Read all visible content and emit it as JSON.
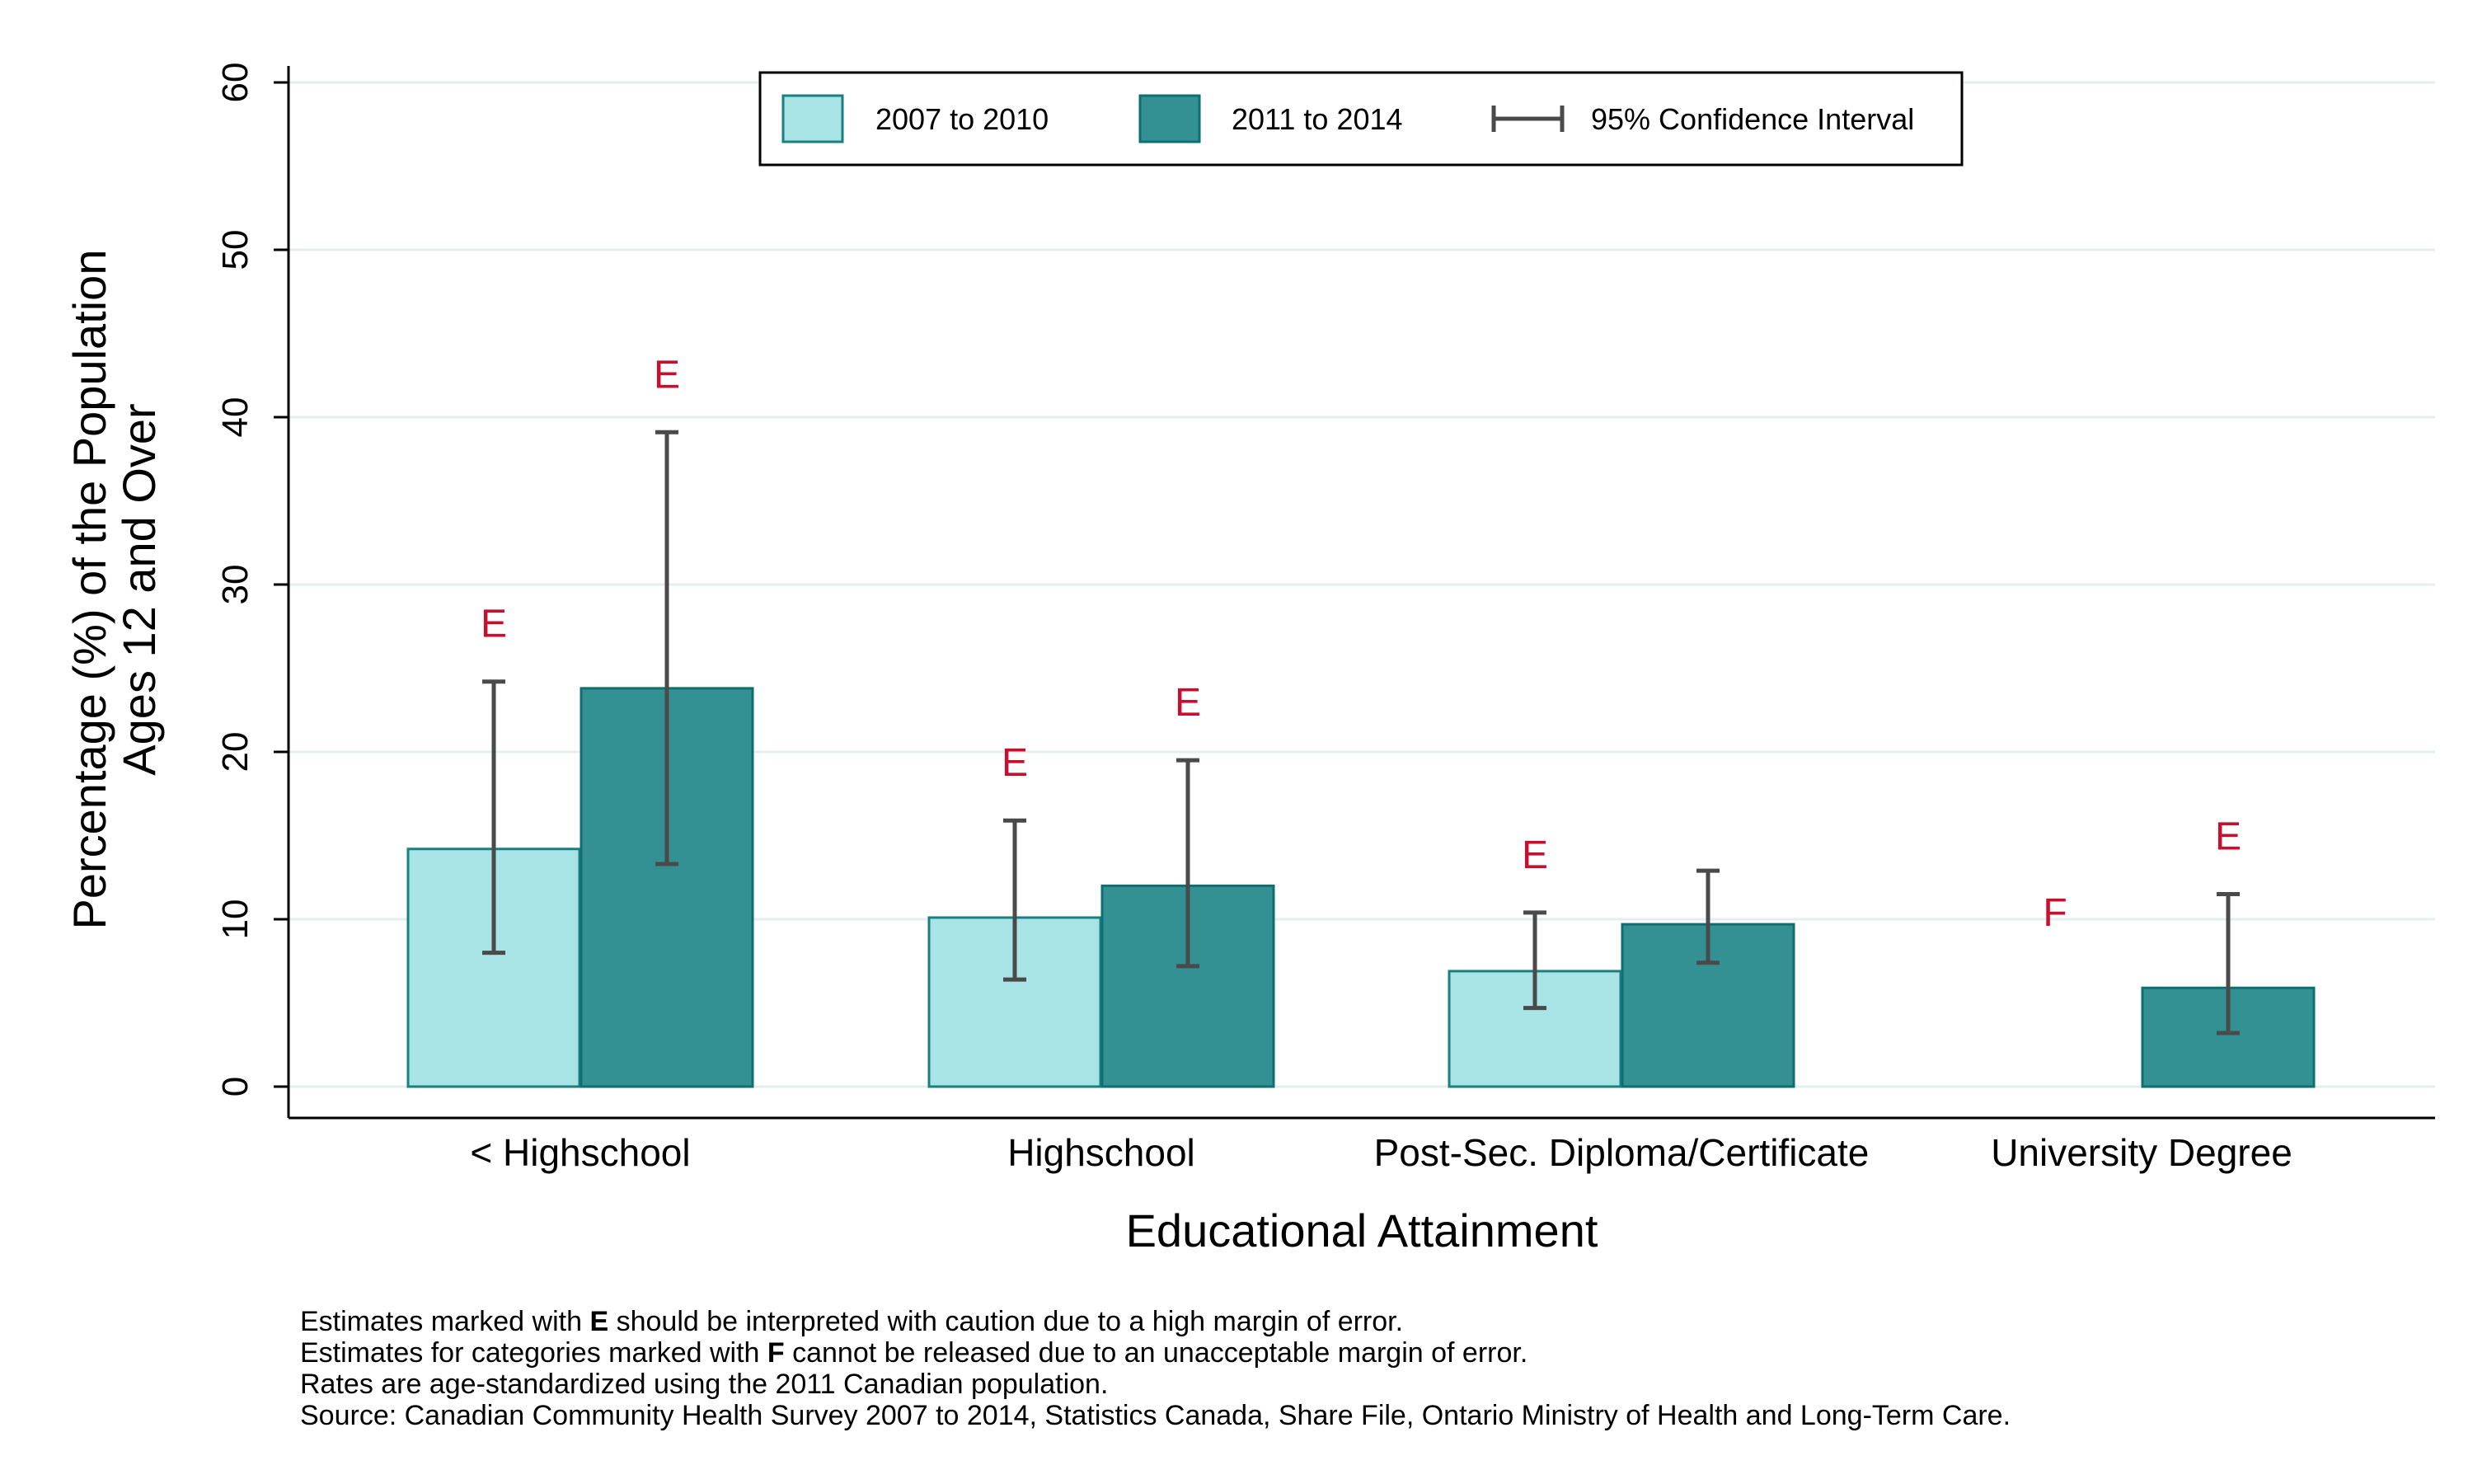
{
  "chart_data": {
    "type": "bar",
    "xlabel": "Educational Attainment",
    "ylabel_lines": [
      "Percentage (%) of the Population",
      "Ages 12 and Over"
    ],
    "ylim": [
      0,
      60
    ],
    "yticks": [
      0,
      10,
      20,
      30,
      40,
      50,
      60
    ],
    "grid": true,
    "legend_position": "top-center",
    "categories": [
      "< Highschool",
      "Highschool",
      "Post-Sec. Diploma/Certificate",
      "University Degree"
    ],
    "series": [
      {
        "name": "2007 to 2010",
        "color": "#a8e4e6",
        "stroke": "#1a7f80",
        "values": [
          14.2,
          10.1,
          6.9,
          null
        ],
        "ci_low": [
          8.0,
          6.4,
          4.7,
          null
        ],
        "ci_high": [
          24.2,
          15.9,
          10.4,
          null
        ],
        "flags": [
          "E",
          "E",
          "E",
          "F"
        ]
      },
      {
        "name": "2011 to 2014",
        "color": "#339193",
        "stroke": "#0e6f70",
        "values": [
          23.8,
          12.0,
          9.7,
          5.9
        ],
        "ci_low": [
          13.3,
          7.2,
          7.4,
          3.2
        ],
        "ci_high": [
          39.1,
          19.5,
          12.9,
          11.5
        ],
        "flags": [
          "E",
          "E",
          "",
          "E"
        ]
      }
    ],
    "ci_legend_label": "95% Confidence Interval",
    "flag_color": "#c8102e",
    "ci_color": "#4a4a4a"
  },
  "notes": {
    "line1": {
      "pre": "Estimates marked with ",
      "bold": "E",
      "post": " should be interpreted with caution due to a high margin of error."
    },
    "line2": {
      "pre": "Estimates for categories marked with ",
      "bold": "F",
      "post": " cannot be released due to an unacceptable margin of error."
    },
    "line3": "Rates are age-standardized using the 2011 Canadian population.",
    "line4": "Source: Canadian Community Health Survey 2007 to 2014, Statistics Canada, Share File, Ontario Ministry of Health and Long-Term Care."
  }
}
